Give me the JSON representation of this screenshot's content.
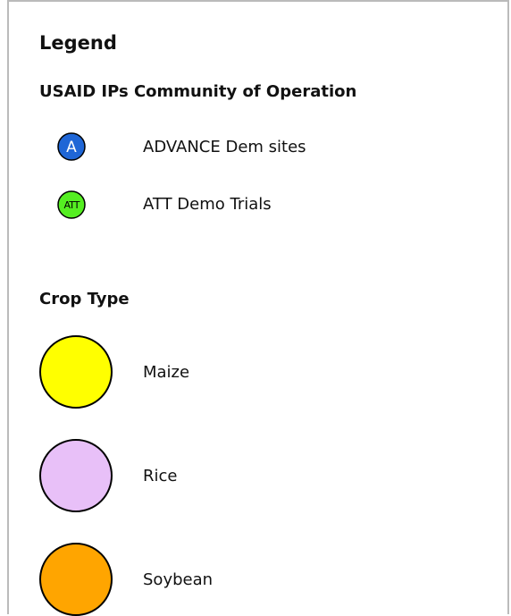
{
  "legend": {
    "title": "Legend",
    "sections": [
      {
        "title": "USAID IPs Community of Operation",
        "items": [
          {
            "icon": "A",
            "label": "ADVANCE Dem sites",
            "color": "#1f66d6"
          },
          {
            "icon": "ATT",
            "label": "ATT Demo Trials",
            "color": "#55ee22"
          }
        ]
      },
      {
        "title": "Crop Type",
        "items": [
          {
            "label": "Maize",
            "color": "#ffff00"
          },
          {
            "label": "Rice",
            "color": "#e8c0f8"
          },
          {
            "label": "Soybean",
            "color": "#ffa500"
          }
        ]
      }
    ]
  }
}
